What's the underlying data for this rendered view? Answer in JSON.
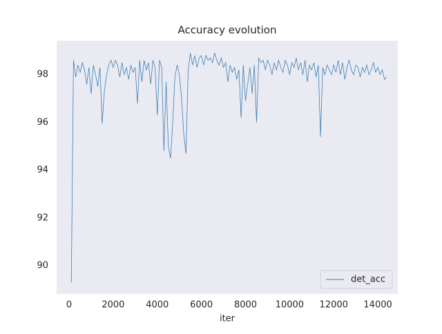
{
  "chart_data": {
    "type": "line",
    "title": "Accuracy evolution",
    "xlabel": "iter",
    "x": [
      100,
      200,
      300,
      400,
      500,
      600,
      700,
      800,
      900,
      1000,
      1100,
      1200,
      1300,
      1400,
      1500,
      1600,
      1700,
      1800,
      1900,
      2000,
      2100,
      2200,
      2300,
      2400,
      2500,
      2600,
      2700,
      2800,
      2900,
      3000,
      3100,
      3200,
      3300,
      3400,
      3500,
      3600,
      3700,
      3800,
      3900,
      4000,
      4100,
      4200,
      4300,
      4400,
      4500,
      4600,
      4700,
      4800,
      4900,
      5000,
      5100,
      5200,
      5300,
      5400,
      5500,
      5600,
      5700,
      5800,
      5900,
      6000,
      6100,
      6200,
      6300,
      6400,
      6500,
      6600,
      6700,
      6800,
      6900,
      7000,
      7100,
      7200,
      7300,
      7400,
      7500,
      7600,
      7700,
      7800,
      7900,
      8000,
      8100,
      8200,
      8300,
      8400,
      8500,
      8600,
      8700,
      8800,
      8900,
      9000,
      9100,
      9200,
      9300,
      9400,
      9500,
      9600,
      9700,
      9800,
      9900,
      10000,
      10100,
      10200,
      10300,
      10400,
      10500,
      10600,
      10700,
      10800,
      10900,
      11000,
      11100,
      11200,
      11300,
      11400,
      11500,
      11600,
      11700,
      11800,
      11900,
      12000,
      12100,
      12200,
      12300,
      12400,
      12500,
      12600,
      12700,
      12800,
      12900,
      13000,
      13100,
      13200,
      13300,
      13400,
      13500,
      13600,
      13700,
      13800,
      13900,
      14000,
      14100,
      14200,
      14300,
      14400
    ],
    "series": [
      {
        "name": "det_acc",
        "color": "#3a7fb5",
        "values": [
          89.3,
          98.6,
          97.9,
          98.4,
          98.1,
          98.5,
          98.2,
          97.6,
          98.3,
          97.2,
          98.4,
          98.0,
          97.5,
          98.3,
          95.95,
          97.3,
          98.0,
          98.4,
          98.6,
          98.3,
          98.6,
          98.4,
          97.9,
          98.5,
          98.0,
          98.3,
          97.8,
          98.4,
          98.1,
          98.3,
          96.8,
          98.6,
          97.7,
          98.6,
          98.2,
          98.5,
          97.6,
          98.6,
          98.3,
          96.3,
          98.6,
          98.3,
          94.8,
          97.7,
          95.0,
          94.5,
          96.0,
          97.9,
          98.4,
          98.0,
          97.0,
          95.5,
          94.7,
          98.2,
          98.9,
          98.4,
          98.8,
          98.3,
          98.7,
          98.8,
          98.4,
          98.8,
          98.6,
          98.7,
          98.5,
          98.9,
          98.6,
          98.4,
          98.7,
          98.3,
          98.5,
          97.7,
          98.4,
          98.1,
          98.3,
          97.8,
          98.2,
          96.2,
          98.4,
          96.9,
          97.6,
          98.3,
          97.2,
          98.4,
          96.0,
          98.7,
          98.5,
          98.6,
          98.2,
          98.6,
          98.4,
          98.0,
          98.5,
          98.2,
          98.6,
          98.3,
          98.1,
          98.6,
          98.4,
          98.0,
          98.5,
          98.3,
          98.7,
          98.2,
          98.5,
          98.0,
          98.6,
          97.7,
          98.4,
          98.2,
          98.5,
          97.9,
          98.4,
          95.4,
          98.3,
          98.0,
          98.4,
          98.2,
          98.0,
          98.4,
          98.1,
          98.6,
          98.0,
          98.5,
          97.8,
          98.3,
          98.6,
          98.2,
          98.0,
          98.4,
          98.3,
          97.9,
          98.3,
          98.1,
          98.4,
          98.0,
          98.2,
          98.5,
          98.1,
          98.3,
          98.0,
          98.2,
          97.8,
          97.9
        ]
      }
    ],
    "xlim": [
      -565,
      14905
    ],
    "ylim": [
      88.82,
      99.42
    ],
    "xticks": [
      0,
      2000,
      4000,
      6000,
      8000,
      10000,
      12000,
      14000
    ],
    "yticks": [
      90,
      92,
      94,
      96,
      98
    ],
    "grid": false,
    "legend": "lower right"
  }
}
